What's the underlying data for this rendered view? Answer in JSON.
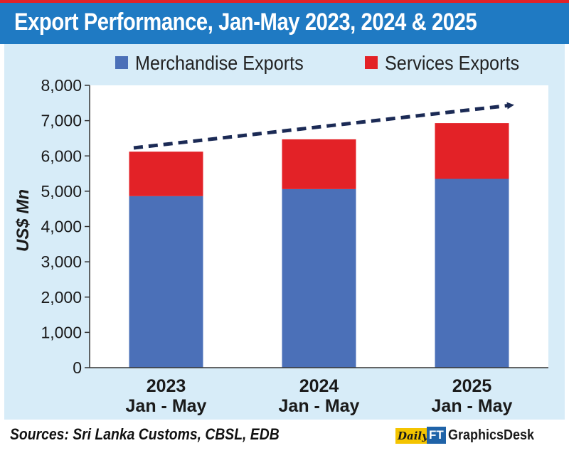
{
  "header": {
    "title": "Export Performance, Jan-May 2023, 2024 & 2025"
  },
  "colors": {
    "title_bar": "#1f7ac3",
    "title_border": "#e02229",
    "panel_background": "#d7ecf8",
    "merchandise": "#4b70b8",
    "services": "#e32227",
    "trend_arrow": "#1b2a55"
  },
  "chart_data": {
    "type": "bar",
    "stacked": true,
    "categories": [
      [
        "2023",
        "Jan - May"
      ],
      [
        "2024",
        "Jan - May"
      ],
      [
        "2025",
        "Jan - May"
      ]
    ],
    "series": [
      {
        "name": "Merchandise Exports",
        "values": [
          4860,
          5060,
          5350
        ]
      },
      {
        "name": "Services Exports",
        "values": [
          1260,
          1410,
          1580
        ]
      }
    ],
    "totals": [
      6120,
      6470,
      6930
    ],
    "title": "",
    "xlabel": "",
    "ylabel": "US$ Mn",
    "ylim": [
      0,
      8000
    ],
    "yticks": [
      "0",
      "1,000",
      "2,000",
      "3,000",
      "4,000",
      "5,000",
      "6,000",
      "7,000",
      "8,000"
    ],
    "ytick_values": [
      0,
      1000,
      2000,
      3000,
      4000,
      5000,
      6000,
      7000,
      8000
    ],
    "grid": false,
    "legend_position": "top",
    "annotations": [
      "dashed upward trend arrow across bar tops"
    ]
  },
  "footer": {
    "sources": "Sources: Sri Lanka Customs, CBSL, EDB",
    "brand_daily": "Daily",
    "brand_ft": "FT",
    "brand_desk": "GraphicsDesk"
  }
}
